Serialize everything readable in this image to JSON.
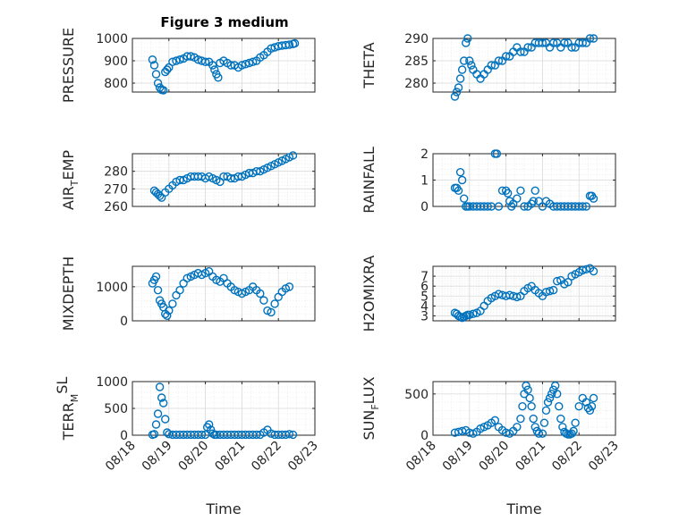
{
  "figure": {
    "title": "Figure 3 medium"
  },
  "chart_data": [
    {
      "type": "scatter",
      "ylabel": "PRESSURE",
      "ylim": [
        760,
        1000
      ],
      "yticks": [
        800,
        900,
        1000
      ],
      "xlim": [
        "08/18",
        "08/23"
      ],
      "xticks": [
        "08/18",
        "08/19",
        "08/20",
        "08/21",
        "08/22",
        "08/23"
      ],
      "xticklabels_visible": false,
      "grid": true,
      "x": [
        18.55,
        18.6,
        18.65,
        18.7,
        18.75,
        18.8,
        18.85,
        18.9,
        18.95,
        19.0,
        19.1,
        19.2,
        19.3,
        19.4,
        19.5,
        19.6,
        19.7,
        19.8,
        19.9,
        20.0,
        20.1,
        20.2,
        20.25,
        20.3,
        20.35,
        20.4,
        20.5,
        20.6,
        20.7,
        20.8,
        20.9,
        21.0,
        21.1,
        21.2,
        21.3,
        21.4,
        21.5,
        21.6,
        21.7,
        21.8,
        21.9,
        22.0,
        22.1,
        22.2,
        22.3,
        22.4,
        22.45
      ],
      "y": [
        905,
        880,
        840,
        800,
        780,
        770,
        768,
        850,
        860,
        870,
        895,
        900,
        905,
        910,
        920,
        920,
        915,
        905,
        900,
        895,
        895,
        880,
        860,
        840,
        825,
        890,
        900,
        890,
        880,
        880,
        870,
        880,
        885,
        890,
        895,
        900,
        915,
        925,
        940,
        955,
        960,
        965,
        968,
        970,
        972,
        975,
        978
      ]
    },
    {
      "type": "scatter",
      "ylabel": "THETA",
      "ylim": [
        278,
        290
      ],
      "yticks": [
        280,
        285,
        290
      ],
      "xlim": [
        "08/18",
        "08/23"
      ],
      "xticks": [
        "08/18",
        "08/19",
        "08/20",
        "08/21",
        "08/22",
        "08/23"
      ],
      "xticklabels_visible": false,
      "grid": true,
      "x": [
        18.6,
        18.65,
        18.7,
        18.75,
        18.8,
        18.85,
        18.9,
        18.95,
        19.0,
        19.05,
        19.1,
        19.2,
        19.3,
        19.4,
        19.5,
        19.6,
        19.7,
        19.8,
        19.9,
        20.0,
        20.1,
        20.2,
        20.3,
        20.4,
        20.5,
        20.6,
        20.7,
        20.8,
        20.9,
        21.0,
        21.1,
        21.2,
        21.3,
        21.4,
        21.5,
        21.6,
        21.7,
        21.8,
        21.9,
        22.0,
        22.1,
        22.2,
        22.3,
        22.4
      ],
      "y": [
        277,
        278,
        279,
        281,
        283,
        285,
        289,
        290,
        285,
        284,
        283,
        282,
        281,
        282,
        283,
        284,
        284,
        285,
        285,
        286,
        286,
        287,
        288,
        287,
        287,
        288,
        288,
        289,
        289,
        289,
        289,
        288,
        289,
        289,
        288,
        289,
        289,
        288,
        288,
        289,
        289,
        289,
        290,
        290
      ]
    },
    {
      "type": "scatter",
      "ylabel": "AIR_TEMP",
      "ylim": [
        260,
        290
      ],
      "yticks": [
        260,
        270,
        280
      ],
      "xlim": [
        "08/18",
        "08/23"
      ],
      "xticks": [
        "08/18",
        "08/19",
        "08/20",
        "08/21",
        "08/22",
        "08/23"
      ],
      "xticklabels_visible": false,
      "grid": true,
      "x": [
        18.6,
        18.65,
        18.7,
        18.75,
        18.8,
        18.9,
        19.0,
        19.1,
        19.2,
        19.3,
        19.4,
        19.5,
        19.6,
        19.7,
        19.8,
        19.9,
        20.0,
        20.1,
        20.2,
        20.3,
        20.4,
        20.5,
        20.6,
        20.7,
        20.8,
        20.9,
        21.0,
        21.1,
        21.2,
        21.3,
        21.4,
        21.5,
        21.6,
        21.7,
        21.8,
        21.9,
        22.0,
        22.1,
        22.2,
        22.3,
        22.4
      ],
      "y": [
        269,
        268,
        267,
        266,
        265,
        268,
        270,
        272,
        274,
        275,
        275,
        276,
        277,
        277,
        277,
        277,
        276,
        277,
        276,
        275,
        274,
        277,
        277,
        276,
        276,
        277,
        277,
        278,
        279,
        279,
        280,
        280,
        281,
        282,
        283,
        284,
        285,
        286,
        287,
        288,
        289
      ]
    },
    {
      "type": "scatter",
      "ylabel": "RAINFALL",
      "ylim": [
        0,
        2
      ],
      "yticks": [
        0,
        1,
        2
      ],
      "xlim": [
        "08/18",
        "08/23"
      ],
      "xticks": [
        "08/18",
        "08/19",
        "08/20",
        "08/21",
        "08/22",
        "08/23"
      ],
      "xticklabels_visible": false,
      "grid": true,
      "x": [
        18.6,
        18.65,
        18.7,
        18.75,
        18.8,
        18.85,
        18.9,
        18.95,
        19.0,
        19.1,
        19.2,
        19.3,
        19.4,
        19.5,
        19.6,
        19.7,
        19.75,
        19.8,
        19.9,
        20.0,
        20.05,
        20.1,
        20.15,
        20.2,
        20.3,
        20.4,
        20.5,
        20.6,
        20.7,
        20.75,
        20.8,
        20.9,
        21.0,
        21.1,
        21.2,
        21.3,
        21.4,
        21.5,
        21.6,
        21.7,
        21.8,
        21.9,
        22.0,
        22.1,
        22.2,
        22.3,
        22.35,
        22.4
      ],
      "y": [
        0.7,
        0.7,
        0.6,
        1.3,
        1.0,
        0.3,
        0.0,
        0.0,
        0.0,
        0.0,
        0.0,
        0.0,
        0.0,
        0.0,
        0.0,
        2.0,
        2.0,
        0.0,
        0.6,
        0.6,
        0.5,
        0.2,
        0.0,
        0.1,
        0.3,
        0.6,
        0.0,
        0.0,
        0.1,
        0.2,
        0.6,
        0.2,
        0.0,
        0.2,
        0.1,
        0.0,
        0.0,
        0.0,
        0.0,
        0.0,
        0.0,
        0.0,
        0.0,
        0.0,
        0.0,
        0.4,
        0.4,
        0.3
      ]
    },
    {
      "type": "scatter",
      "ylabel": "MIXDEPTH",
      "ylim": [
        0,
        1600
      ],
      "yticks": [
        0,
        1000
      ],
      "xlim": [
        "08/18",
        "08/23"
      ],
      "xticks": [
        "08/18",
        "08/19",
        "08/20",
        "08/21",
        "08/22",
        "08/23"
      ],
      "xticklabels_visible": false,
      "grid": true,
      "x": [
        18.55,
        18.6,
        18.65,
        18.7,
        18.75,
        18.8,
        18.85,
        18.9,
        18.95,
        19.0,
        19.1,
        19.2,
        19.3,
        19.4,
        19.5,
        19.6,
        19.7,
        19.8,
        19.9,
        20.0,
        20.1,
        20.2,
        20.3,
        20.4,
        20.5,
        20.6,
        20.7,
        20.8,
        20.9,
        21.0,
        21.1,
        21.2,
        21.3,
        21.4,
        21.5,
        21.6,
        21.7,
        21.8,
        21.9,
        22.0,
        22.1,
        22.2,
        22.3
      ],
      "y": [
        1100,
        1200,
        1300,
        900,
        600,
        500,
        400,
        200,
        150,
        300,
        500,
        750,
        900,
        1100,
        1250,
        1300,
        1350,
        1400,
        1350,
        1400,
        1450,
        1300,
        1200,
        1150,
        1250,
        1100,
        1000,
        900,
        850,
        800,
        850,
        900,
        1000,
        900,
        800,
        600,
        300,
        250,
        500,
        700,
        850,
        950,
        1000
      ]
    },
    {
      "type": "scatter",
      "ylabel": "H2OMIXRA",
      "ylim": [
        2.5,
        8
      ],
      "yticks": [
        3,
        4,
        5,
        6,
        7
      ],
      "xlim": [
        "08/18",
        "08/23"
      ],
      "xticks": [
        "08/18",
        "08/19",
        "08/20",
        "08/21",
        "08/22",
        "08/23"
      ],
      "xticklabels_visible": false,
      "grid": true,
      "x": [
        18.6,
        18.65,
        18.7,
        18.75,
        18.8,
        18.85,
        18.9,
        18.95,
        19.0,
        19.1,
        19.2,
        19.3,
        19.4,
        19.5,
        19.6,
        19.7,
        19.8,
        19.9,
        20.0,
        20.1,
        20.2,
        20.3,
        20.4,
        20.5,
        20.6,
        20.7,
        20.8,
        20.9,
        21.0,
        21.1,
        21.2,
        21.3,
        21.4,
        21.5,
        21.6,
        21.7,
        21.8,
        21.9,
        22.0,
        22.1,
        22.2,
        22.3,
        22.4
      ],
      "y": [
        3.3,
        3.2,
        3.0,
        2.9,
        2.8,
        2.9,
        3.0,
        3.1,
        3.1,
        3.2,
        3.3,
        3.5,
        4.0,
        4.5,
        4.8,
        5.0,
        5.2,
        5.1,
        5.0,
        5.1,
        5.0,
        4.9,
        5.0,
        5.5,
        5.8,
        6.0,
        5.6,
        5.3,
        5.0,
        5.4,
        5.5,
        5.6,
        6.5,
        6.6,
        6.2,
        6.4,
        7.0,
        7.2,
        7.4,
        7.6,
        7.7,
        7.8,
        7.5
      ]
    },
    {
      "type": "scatter",
      "ylabel": "TERR_MSL",
      "ylim": [
        0,
        1000
      ],
      "yticks": [
        0,
        500,
        1000
      ],
      "xlim": [
        "08/18",
        "08/23"
      ],
      "xticks": [
        "08/18",
        "08/19",
        "08/20",
        "08/21",
        "08/22",
        "08/23"
      ],
      "xticklabels": [
        "08/18",
        "08/19",
        "08/20",
        "08/21",
        "08/22",
        "08/23"
      ],
      "xlabel": "Time",
      "grid": true,
      "x": [
        18.55,
        18.6,
        18.65,
        18.7,
        18.75,
        18.8,
        18.85,
        18.9,
        18.95,
        19.0,
        19.1,
        19.2,
        19.3,
        19.4,
        19.5,
        19.6,
        19.7,
        19.8,
        19.9,
        20.0,
        20.05,
        20.1,
        20.15,
        20.2,
        20.25,
        20.3,
        20.4,
        20.5,
        20.6,
        20.7,
        20.8,
        20.9,
        21.0,
        21.1,
        21.2,
        21.3,
        21.4,
        21.5,
        21.6,
        21.7,
        21.8,
        21.9,
        22.0,
        22.1,
        22.2,
        22.3,
        22.4
      ],
      "y": [
        10,
        20,
        200,
        400,
        900,
        700,
        600,
        300,
        50,
        20,
        10,
        10,
        10,
        10,
        10,
        10,
        10,
        10,
        10,
        10,
        150,
        200,
        100,
        30,
        10,
        10,
        10,
        10,
        10,
        10,
        10,
        10,
        10,
        10,
        10,
        10,
        10,
        10,
        50,
        100,
        30,
        10,
        10,
        10,
        10,
        20,
        10
      ]
    },
    {
      "type": "scatter",
      "ylabel": "SUN_FLUX",
      "ylim": [
        0,
        650
      ],
      "yticks": [
        0,
        500
      ],
      "xlim": [
        "08/18",
        "08/23"
      ],
      "xticks": [
        "08/18",
        "08/19",
        "08/20",
        "08/21",
        "08/22",
        "08/23"
      ],
      "xticklabels": [
        "08/18",
        "08/19",
        "08/20",
        "08/21",
        "08/22",
        "08/23"
      ],
      "xlabel": "Time",
      "grid": true,
      "x": [
        18.6,
        18.7,
        18.8,
        18.9,
        19.0,
        19.1,
        19.2,
        19.3,
        19.4,
        19.5,
        19.6,
        19.7,
        19.8,
        19.9,
        20.0,
        20.1,
        20.2,
        20.3,
        20.4,
        20.45,
        20.5,
        20.55,
        20.6,
        20.65,
        20.7,
        20.75,
        20.8,
        20.85,
        20.9,
        21.0,
        21.05,
        21.1,
        21.15,
        21.2,
        21.25,
        21.3,
        21.35,
        21.4,
        21.45,
        21.5,
        21.55,
        21.6,
        21.65,
        21.7,
        21.75,
        21.8,
        21.85,
        21.9,
        22.0,
        22.1,
        22.2,
        22.25,
        22.3,
        22.35,
        22.4
      ],
      "y": [
        30,
        40,
        50,
        60,
        30,
        20,
        40,
        80,
        100,
        120,
        150,
        180,
        100,
        60,
        30,
        20,
        50,
        100,
        200,
        350,
        500,
        600,
        550,
        450,
        350,
        200,
        100,
        50,
        20,
        20,
        150,
        300,
        400,
        450,
        500,
        550,
        600,
        500,
        350,
        200,
        100,
        40,
        20,
        10,
        10,
        20,
        50,
        150,
        350,
        450,
        400,
        330,
        300,
        350,
        450
      ]
    }
  ]
}
